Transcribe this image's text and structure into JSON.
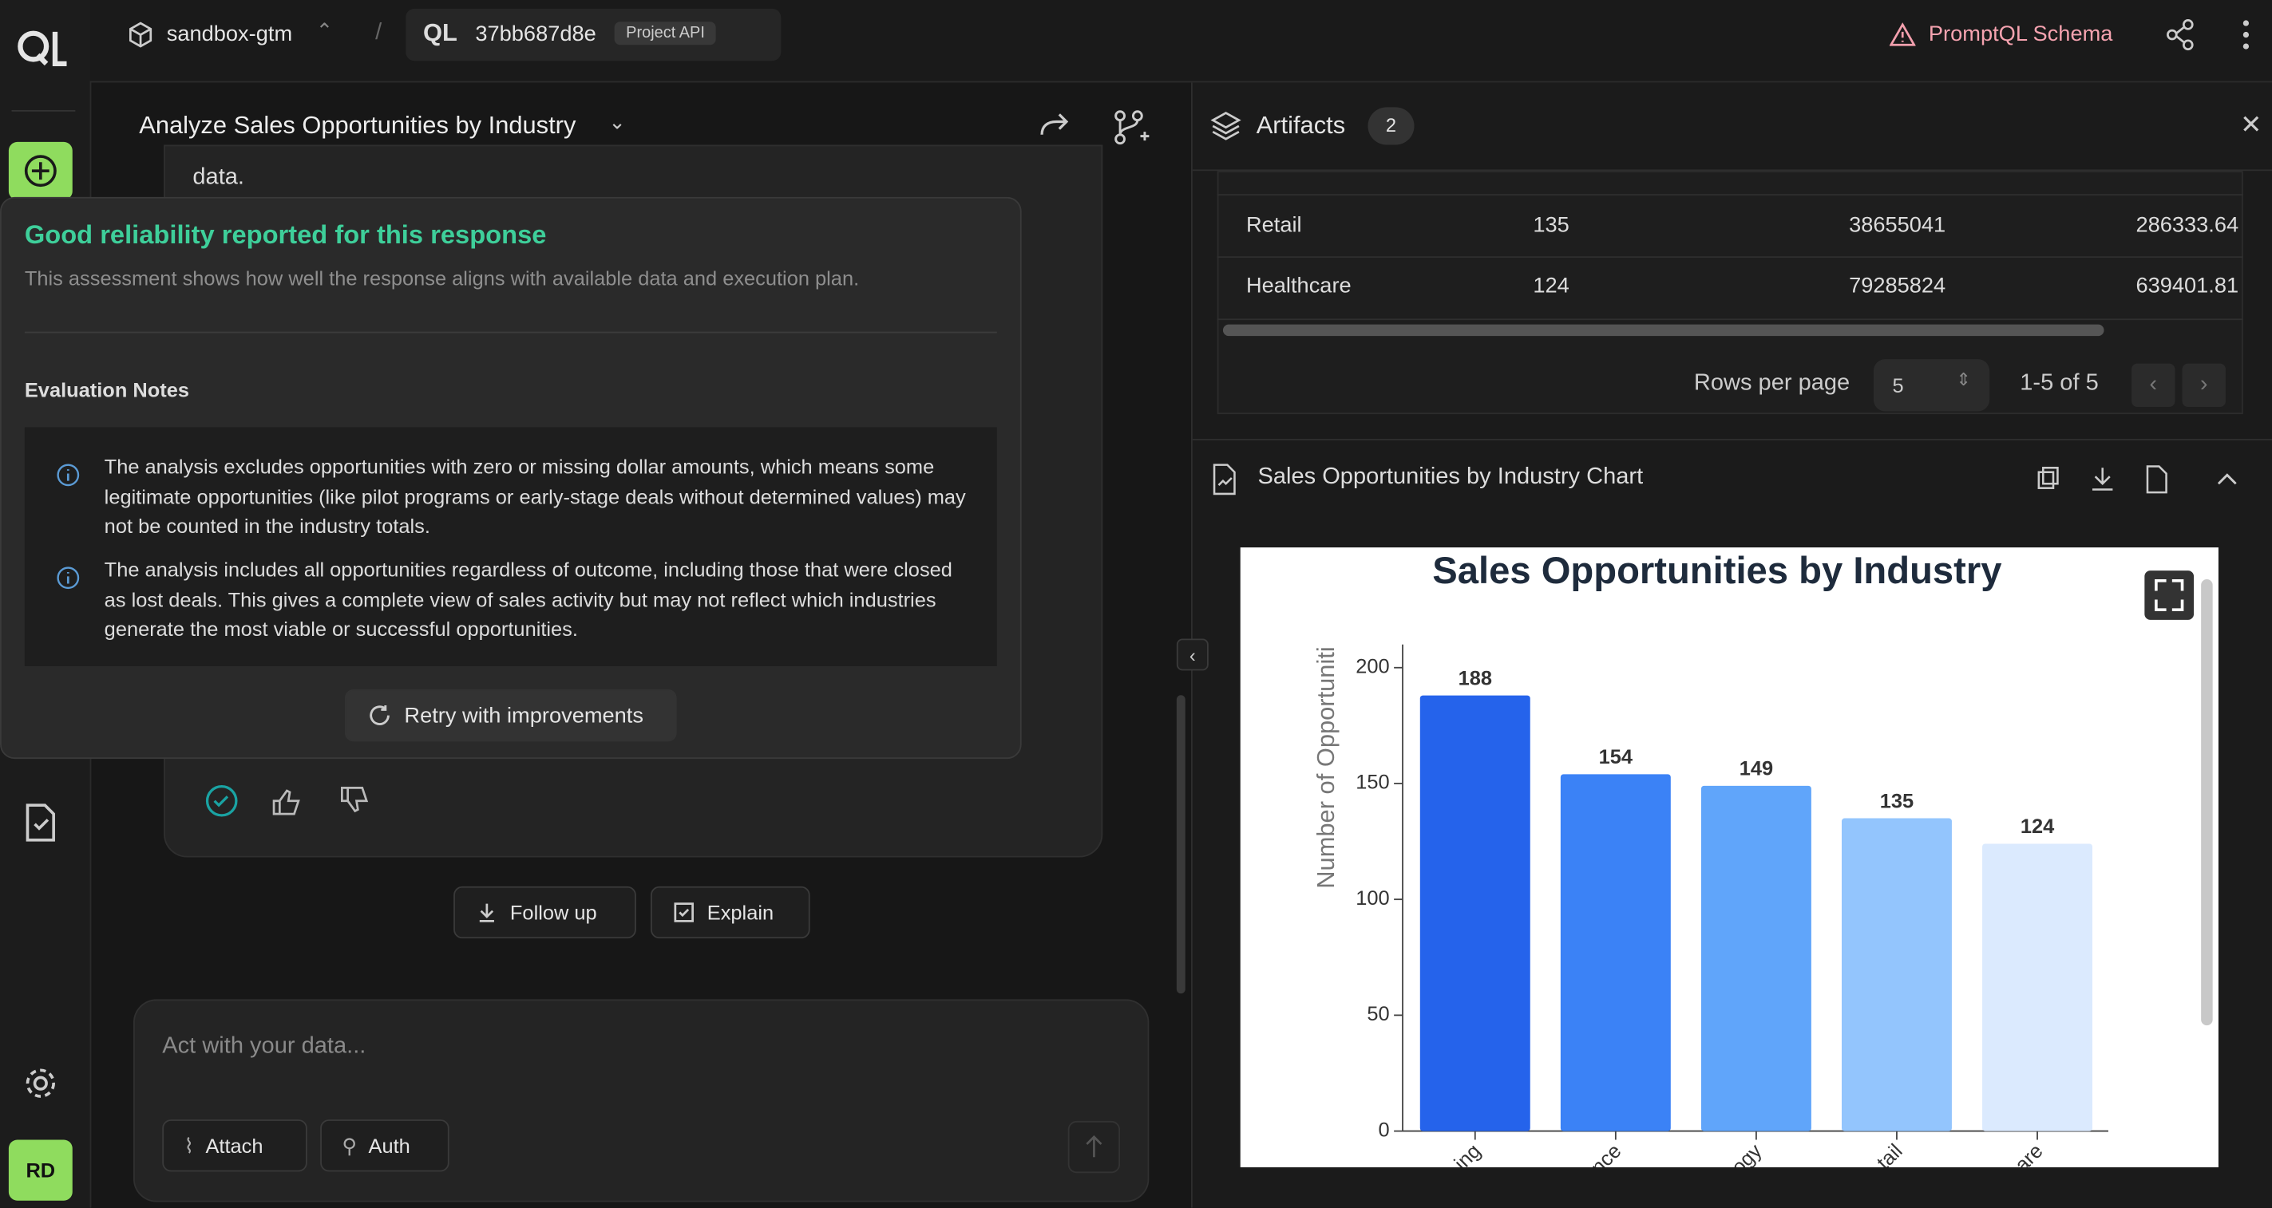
{
  "top_bar": {
    "project": "sandbox-gtm",
    "separator": "/",
    "build": "37bb687d8e",
    "badge": "Project API",
    "schema": "PromptQL Schema"
  },
  "sidebar": {
    "avatar": "RD"
  },
  "thread": {
    "title": "Analyze Sales Opportunities by Industry",
    "bubble_text": "data."
  },
  "reliability": {
    "title": "Good reliability reported for this response",
    "subtitle": "This assessment shows how well the response aligns with available data and execution plan.",
    "notes_heading": "Evaluation Notes",
    "notes": [
      "The analysis excludes opportunities with zero or missing dollar amounts, which means some legitimate opportunities (like pilot programs or early-stage deals without determined values) may not be counted in the industry totals.",
      "The analysis includes all opportunities regardless of outcome, including those that were closed as lost deals. This gives a complete view of sales activity but may not reflect which industries generate the most viable or successful opportunities."
    ],
    "retry": "Retry with improvements"
  },
  "actions": {
    "follow_up": "Follow up",
    "explain": "Explain"
  },
  "composer": {
    "placeholder": "Act with your data...",
    "attach": "Attach",
    "auth": "Auth"
  },
  "artifacts": {
    "title": "Artifacts",
    "count": 2,
    "table": {
      "rows": [
        [
          "Retail",
          "135",
          "38655041",
          "286333.64"
        ],
        [
          "Healthcare",
          "124",
          "79285824",
          "639401.81"
        ]
      ]
    },
    "rows_per_page": "Rows per page",
    "page_size": "5",
    "range": "1-5 of 5",
    "chart_panel_title": "Sales Opportunities by Industry Chart"
  },
  "chart_data": {
    "type": "bar",
    "title": "Sales Opportunities by Industry",
    "y_label": "Number of Opportuniti",
    "categories": [
      "ing",
      "nce",
      "ogy",
      "tail",
      "are"
    ],
    "values": [
      188,
      154,
      149,
      135,
      124
    ],
    "colors": [
      "#2563eb",
      "#3b82f6",
      "#60a5fa",
      "#93c5fd",
      "#dbeafe"
    ],
    "ylim": [
      0,
      210
    ],
    "yticks": [
      0,
      50,
      100,
      150,
      200
    ]
  }
}
